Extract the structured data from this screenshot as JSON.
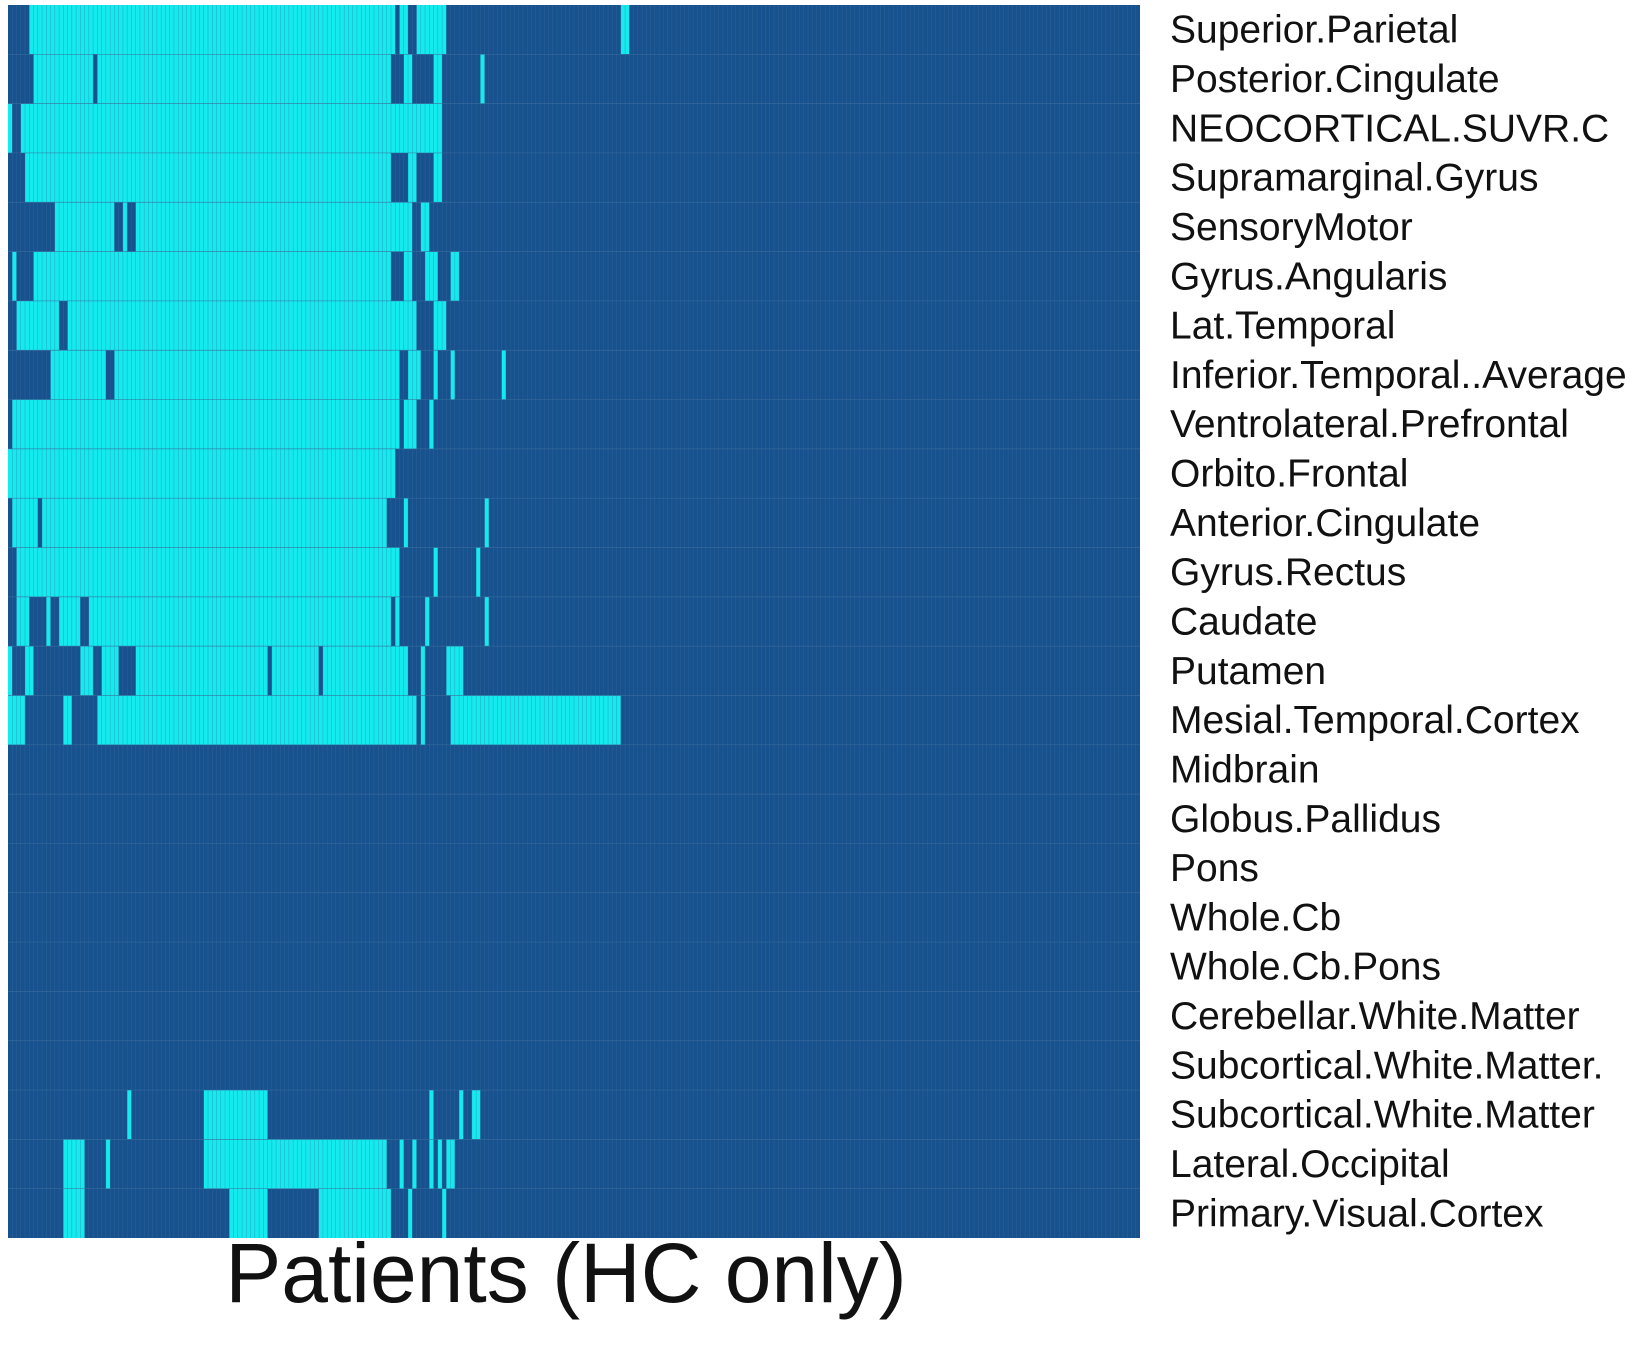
{
  "chart_data": {
    "type": "heatmap",
    "title": "",
    "xlabel": "Patients (HC only)",
    "ylabel": "",
    "rows": [
      "Superior.Parietal",
      "Posterior.Cingulate",
      "NEOCORTICAL.SUVR.C",
      "Supramarginal.Gyrus",
      "SensoryMotor",
      "Gyrus.Angularis",
      "Lat.Temporal",
      "Inferior.Temporal..Average",
      "Ventrolateral.Prefrontal",
      "Orbito.Frontal",
      "Anterior.Cingulate",
      "Gyrus.Rectus",
      "Caudate",
      "Putamen",
      "Mesial.Temporal.Cortex",
      "Midbrain",
      "Globus.Pallidus",
      "Pons",
      "Whole.Cb",
      "Whole.Cb.Pons",
      "Cerebellar.White.Matter",
      "Subcortical.White.Matter.",
      "Subcortical.White.Matter",
      "Lateral.Occipital",
      "Primary.Visual.Cortex"
    ],
    "columns_count": 266,
    "value_levels": [
      0,
      1
    ],
    "colors": {
      "low": "#17518e",
      "high": "#13ebee",
      "grid": "#3d6f9f"
    },
    "grid": true,
    "legend": "none",
    "high_segments": [
      [
        [
          5,
          91
        ],
        [
          92,
          94
        ],
        [
          96,
          103
        ],
        [
          144,
          146
        ]
      ],
      [
        [
          6,
          20
        ],
        [
          21,
          90
        ],
        [
          93,
          95
        ],
        [
          100,
          102
        ],
        [
          111,
          112
        ]
      ],
      [
        [
          0,
          1
        ],
        [
          3,
          102
        ]
      ],
      [
        [
          4,
          90
        ],
        [
          94,
          96
        ],
        [
          100,
          102
        ]
      ],
      [
        [
          11,
          25
        ],
        [
          27,
          28
        ],
        [
          30,
          95
        ],
        [
          97,
          99
        ]
      ],
      [
        [
          1,
          2
        ],
        [
          6,
          90
        ],
        [
          93,
          95
        ],
        [
          98,
          101
        ],
        [
          104,
          106
        ]
      ],
      [
        [
          2,
          12
        ],
        [
          14,
          96
        ],
        [
          100,
          103
        ]
      ],
      [
        [
          10,
          23
        ],
        [
          25,
          92
        ],
        [
          94,
          97
        ],
        [
          100,
          101
        ],
        [
          104,
          105
        ],
        [
          116,
          117
        ]
      ],
      [
        [
          1,
          92
        ],
        [
          93,
          96
        ],
        [
          99,
          100
        ]
      ],
      [
        [
          0,
          91
        ]
      ],
      [
        [
          1,
          7
        ],
        [
          8,
          89
        ],
        [
          93,
          94
        ],
        [
          112,
          113
        ]
      ],
      [
        [
          2,
          92
        ],
        [
          100,
          101
        ],
        [
          110,
          111
        ]
      ],
      [
        [
          2,
          5
        ],
        [
          9,
          10
        ],
        [
          12,
          17
        ],
        [
          19,
          90
        ],
        [
          91,
          92
        ],
        [
          98,
          99
        ],
        [
          112,
          113
        ]
      ],
      [
        [
          0,
          1
        ],
        [
          4,
          6
        ],
        [
          17,
          20
        ],
        [
          22,
          26
        ],
        [
          30,
          61
        ],
        [
          62,
          73
        ],
        [
          74,
          94
        ],
        [
          97,
          98
        ],
        [
          103,
          107
        ]
      ],
      [
        [
          0,
          4
        ],
        [
          13,
          15
        ],
        [
          21,
          96
        ],
        [
          97,
          98
        ],
        [
          104,
          144
        ]
      ],
      [],
      [],
      [],
      [],
      [],
      [],
      [],
      [
        [
          28,
          29
        ],
        [
          46,
          61
        ],
        [
          99,
          100
        ],
        [
          106,
          107
        ],
        [
          109,
          111
        ]
      ],
      [
        [
          13,
          18
        ],
        [
          23,
          24
        ],
        [
          46,
          89
        ],
        [
          92,
          93
        ],
        [
          95,
          96
        ],
        [
          99,
          100
        ],
        [
          101,
          102
        ],
        [
          103,
          105
        ]
      ],
      [
        [
          13,
          18
        ],
        [
          52,
          61
        ],
        [
          73,
          90
        ],
        [
          94,
          95
        ],
        [
          102,
          103
        ]
      ]
    ]
  }
}
